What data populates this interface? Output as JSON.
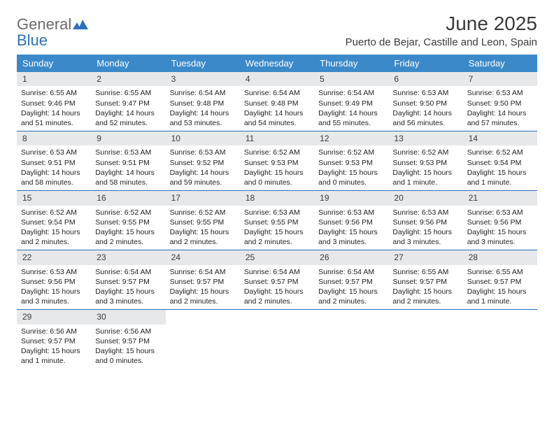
{
  "logo": {
    "line1": "General",
    "line2": "Blue"
  },
  "title": "June 2025",
  "location": "Puerto de Bejar, Castille and Leon, Spain",
  "colors": {
    "header_bg": "#3b89c9",
    "header_text": "#ffffff",
    "daynum_bg": "#e7e8ea",
    "week_border": "#2a71b8",
    "logo_gray": "#6b6b6b",
    "logo_blue": "#2a71b8",
    "text": "#3a3a3a"
  },
  "day_names": [
    "Sunday",
    "Monday",
    "Tuesday",
    "Wednesday",
    "Thursday",
    "Friday",
    "Saturday"
  ],
  "days": [
    {
      "n": "1",
      "sr": "Sunrise: 6:55 AM",
      "ss": "Sunset: 9:46 PM",
      "d1": "Daylight: 14 hours",
      "d2": "and 51 minutes."
    },
    {
      "n": "2",
      "sr": "Sunrise: 6:55 AM",
      "ss": "Sunset: 9:47 PM",
      "d1": "Daylight: 14 hours",
      "d2": "and 52 minutes."
    },
    {
      "n": "3",
      "sr": "Sunrise: 6:54 AM",
      "ss": "Sunset: 9:48 PM",
      "d1": "Daylight: 14 hours",
      "d2": "and 53 minutes."
    },
    {
      "n": "4",
      "sr": "Sunrise: 6:54 AM",
      "ss": "Sunset: 9:48 PM",
      "d1": "Daylight: 14 hours",
      "d2": "and 54 minutes."
    },
    {
      "n": "5",
      "sr": "Sunrise: 6:54 AM",
      "ss": "Sunset: 9:49 PM",
      "d1": "Daylight: 14 hours",
      "d2": "and 55 minutes."
    },
    {
      "n": "6",
      "sr": "Sunrise: 6:53 AM",
      "ss": "Sunset: 9:50 PM",
      "d1": "Daylight: 14 hours",
      "d2": "and 56 minutes."
    },
    {
      "n": "7",
      "sr": "Sunrise: 6:53 AM",
      "ss": "Sunset: 9:50 PM",
      "d1": "Daylight: 14 hours",
      "d2": "and 57 minutes."
    },
    {
      "n": "8",
      "sr": "Sunrise: 6:53 AM",
      "ss": "Sunset: 9:51 PM",
      "d1": "Daylight: 14 hours",
      "d2": "and 58 minutes."
    },
    {
      "n": "9",
      "sr": "Sunrise: 6:53 AM",
      "ss": "Sunset: 9:51 PM",
      "d1": "Daylight: 14 hours",
      "d2": "and 58 minutes."
    },
    {
      "n": "10",
      "sr": "Sunrise: 6:53 AM",
      "ss": "Sunset: 9:52 PM",
      "d1": "Daylight: 14 hours",
      "d2": "and 59 minutes."
    },
    {
      "n": "11",
      "sr": "Sunrise: 6:52 AM",
      "ss": "Sunset: 9:53 PM",
      "d1": "Daylight: 15 hours",
      "d2": "and 0 minutes."
    },
    {
      "n": "12",
      "sr": "Sunrise: 6:52 AM",
      "ss": "Sunset: 9:53 PM",
      "d1": "Daylight: 15 hours",
      "d2": "and 0 minutes."
    },
    {
      "n": "13",
      "sr": "Sunrise: 6:52 AM",
      "ss": "Sunset: 9:53 PM",
      "d1": "Daylight: 15 hours",
      "d2": "and 1 minute."
    },
    {
      "n": "14",
      "sr": "Sunrise: 6:52 AM",
      "ss": "Sunset: 9:54 PM",
      "d1": "Daylight: 15 hours",
      "d2": "and 1 minute."
    },
    {
      "n": "15",
      "sr": "Sunrise: 6:52 AM",
      "ss": "Sunset: 9:54 PM",
      "d1": "Daylight: 15 hours",
      "d2": "and 2 minutes."
    },
    {
      "n": "16",
      "sr": "Sunrise: 6:52 AM",
      "ss": "Sunset: 9:55 PM",
      "d1": "Daylight: 15 hours",
      "d2": "and 2 minutes."
    },
    {
      "n": "17",
      "sr": "Sunrise: 6:52 AM",
      "ss": "Sunset: 9:55 PM",
      "d1": "Daylight: 15 hours",
      "d2": "and 2 minutes."
    },
    {
      "n": "18",
      "sr": "Sunrise: 6:53 AM",
      "ss": "Sunset: 9:55 PM",
      "d1": "Daylight: 15 hours",
      "d2": "and 2 minutes."
    },
    {
      "n": "19",
      "sr": "Sunrise: 6:53 AM",
      "ss": "Sunset: 9:56 PM",
      "d1": "Daylight: 15 hours",
      "d2": "and 3 minutes."
    },
    {
      "n": "20",
      "sr": "Sunrise: 6:53 AM",
      "ss": "Sunset: 9:56 PM",
      "d1": "Daylight: 15 hours",
      "d2": "and 3 minutes."
    },
    {
      "n": "21",
      "sr": "Sunrise: 6:53 AM",
      "ss": "Sunset: 9:56 PM",
      "d1": "Daylight: 15 hours",
      "d2": "and 3 minutes."
    },
    {
      "n": "22",
      "sr": "Sunrise: 6:53 AM",
      "ss": "Sunset: 9:56 PM",
      "d1": "Daylight: 15 hours",
      "d2": "and 3 minutes."
    },
    {
      "n": "23",
      "sr": "Sunrise: 6:54 AM",
      "ss": "Sunset: 9:57 PM",
      "d1": "Daylight: 15 hours",
      "d2": "and 3 minutes."
    },
    {
      "n": "24",
      "sr": "Sunrise: 6:54 AM",
      "ss": "Sunset: 9:57 PM",
      "d1": "Daylight: 15 hours",
      "d2": "and 2 minutes."
    },
    {
      "n": "25",
      "sr": "Sunrise: 6:54 AM",
      "ss": "Sunset: 9:57 PM",
      "d1": "Daylight: 15 hours",
      "d2": "and 2 minutes."
    },
    {
      "n": "26",
      "sr": "Sunrise: 6:54 AM",
      "ss": "Sunset: 9:57 PM",
      "d1": "Daylight: 15 hours",
      "d2": "and 2 minutes."
    },
    {
      "n": "27",
      "sr": "Sunrise: 6:55 AM",
      "ss": "Sunset: 9:57 PM",
      "d1": "Daylight: 15 hours",
      "d2": "and 2 minutes."
    },
    {
      "n": "28",
      "sr": "Sunrise: 6:55 AM",
      "ss": "Sunset: 9:57 PM",
      "d1": "Daylight: 15 hours",
      "d2": "and 1 minute."
    },
    {
      "n": "29",
      "sr": "Sunrise: 6:56 AM",
      "ss": "Sunset: 9:57 PM",
      "d1": "Daylight: 15 hours",
      "d2": "and 1 minute."
    },
    {
      "n": "30",
      "sr": "Sunrise: 6:56 AM",
      "ss": "Sunset: 9:57 PM",
      "d1": "Daylight: 15 hours",
      "d2": "and 0 minutes."
    }
  ]
}
